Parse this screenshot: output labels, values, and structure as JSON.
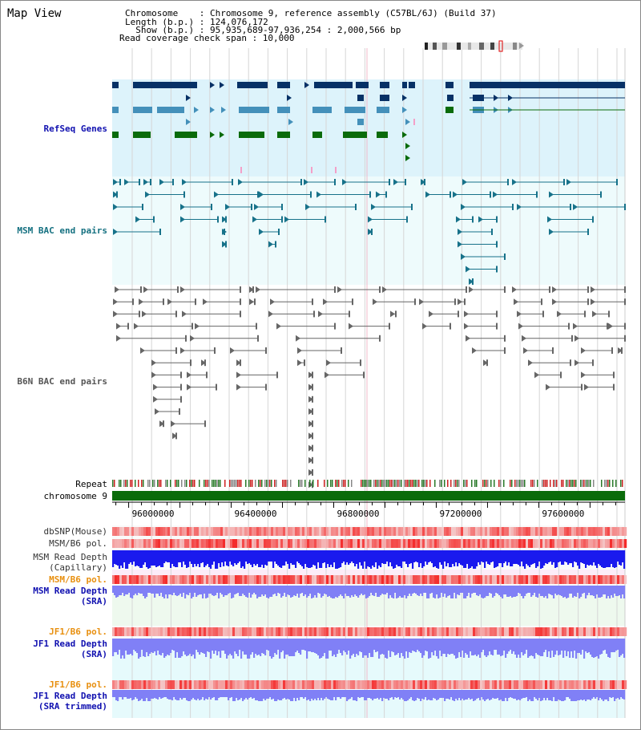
{
  "title": "Map View",
  "header": {
    "chromosome": "Chromosome    : Chromosome 9, reference assembly (C57BL/6J) (Build 37)",
    "length": "Length (b.p.) : 124,076,172",
    "show": "  Show (b.p.) : 95,935,689-97,936,254 : 2,000,566 bp",
    "coverage": "Read coverage check span : 10,000"
  },
  "range": {
    "start": 95935689,
    "end": 97936254
  },
  "tracks": {
    "refseq": "RefSeq Genes",
    "msm_bac": "MSM BAC end pairs",
    "b6n_bac": "B6N BAC end pairs",
    "repeat": "Repeat",
    "chromosome": "chromosome 9",
    "dbsnp": "dbSNP(Mouse)",
    "msm_pol_1": "MSM/B6 pol.",
    "msm_depth_cap_1": "MSM Read Depth",
    "msm_depth_cap_2": "(Capillary)",
    "msm_pol_2": "MSM/B6 pol.",
    "msm_depth_sra_1": "MSM Read Depth",
    "msm_depth_sra_2": "(SRA)",
    "jf1_pol_1": "JF1/B6 pol.",
    "jf1_depth_sra_1": "JF1 Read Depth",
    "jf1_depth_sra_2": "(SRA)",
    "jf1_pol_2": "JF1/B6 pol.",
    "jf1_depth_trim_1": "JF1 Read Depth",
    "jf1_depth_trim_2": "(SRA trimmed)"
  },
  "axis": {
    "ticks": [
      {
        "value": 96000000,
        "label": "96000000"
      },
      {
        "value": 96400000,
        "label": "96400000"
      },
      {
        "value": 96800000,
        "label": "96800000"
      },
      {
        "value": 97200000,
        "label": "97200000"
      },
      {
        "value": 97600000,
        "label": "97600000"
      }
    ]
  },
  "colors": {
    "refseq_bg": "#ddf3fb",
    "bac_bg": "#eefbfc",
    "gene_dark": "#073166",
    "gene_mid": "#4490ba",
    "gene_green": "#0a6b0a",
    "msm_bac": "#17728a",
    "b6n_bac": "#666666",
    "chromosome": "#0a6b0a",
    "snp_red": "#f47a7a",
    "depth_blue": "#1a1aee",
    "depth_violet": "#8080f6",
    "label_blue": "#1010b0",
    "label_teal": "#147080",
    "label_orange": "#e89010"
  }
}
